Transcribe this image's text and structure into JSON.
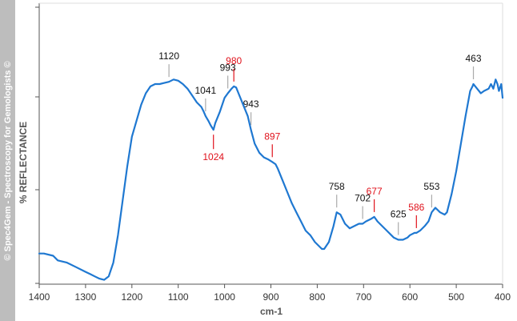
{
  "watermark": "© Spec4Gem - Spectroscopy for Gemologists ©",
  "chart_data": {
    "type": "line",
    "xlabel": "cm-1",
    "ylabel": "% REFLECTANCE",
    "xlim": [
      1400,
      400
    ],
    "x_reversed": true,
    "ylim": [
      0,
      100
    ],
    "grid": false,
    "x_ticks": [
      1400,
      1300,
      1200,
      1100,
      1000,
      900,
      800,
      700,
      600,
      500,
      400
    ],
    "line_color": "#1f78d1",
    "series": [
      {
        "values_note_units": "arbitrary reflectance (no y tick labels printed)",
        "x": [
          1400,
          1390,
          1370,
          1360,
          1340,
          1320,
          1300,
          1290,
          1280,
          1270,
          1260,
          1250,
          1240,
          1230,
          1220,
          1210,
          1200,
          1190,
          1180,
          1170,
          1160,
          1150,
          1140,
          1130,
          1120,
          1110,
          1100,
          1090,
          1080,
          1070,
          1060,
          1050,
          1045,
          1041,
          1035,
          1030,
          1024,
          1020,
          1010,
          1000,
          993,
          985,
          980,
          975,
          970,
          960,
          950,
          943,
          935,
          925,
          915,
          905,
          897,
          890,
          885,
          875,
          865,
          855,
          845,
          835,
          825,
          815,
          805,
          795,
          790,
          785,
          775,
          765,
          758,
          750,
          740,
          730,
          720,
          710,
          702,
          695,
          685,
          677,
          670,
          660,
          650,
          640,
          635,
          625,
          615,
          605,
          600,
          590,
          586,
          578,
          568,
          560,
          553,
          545,
          535,
          525,
          520,
          510,
          500,
          490,
          480,
          470,
          465,
          463,
          455,
          447,
          440,
          430,
          425,
          420,
          415,
          411,
          408,
          403,
          400
        ],
        "y": [
          12,
          12,
          11,
          9,
          8,
          6,
          4,
          3,
          2,
          1,
          0.5,
          2,
          8,
          20,
          35,
          50,
          63,
          70,
          77,
          82,
          85,
          86,
          86,
          86.5,
          87,
          88,
          87.5,
          86,
          84,
          81,
          78,
          76,
          74,
          72,
          70,
          68,
          66,
          69,
          74,
          80,
          82,
          84,
          85,
          84.5,
          82,
          77,
          72,
          66,
          60,
          56,
          54,
          53,
          52,
          51,
          49,
          44,
          39,
          34,
          30,
          26,
          22,
          20,
          17,
          15,
          14,
          14,
          17,
          24,
          30,
          29,
          25,
          23,
          24,
          25,
          25,
          26,
          27,
          28,
          26,
          24,
          22,
          20,
          19,
          18,
          18,
          19,
          20,
          21,
          21,
          22,
          24,
          26,
          30,
          32,
          30,
          29,
          30,
          38,
          48,
          60,
          72,
          83,
          85,
          86,
          84,
          82,
          83,
          84,
          86,
          84,
          88,
          86,
          83,
          86,
          80
        ]
      }
    ],
    "annotations": [
      {
        "label": "1120",
        "x": 1120,
        "color": "black"
      },
      {
        "label": "1041",
        "x": 1041,
        "color": "black"
      },
      {
        "label": "1024",
        "x": 1024,
        "color": "red"
      },
      {
        "label": "993",
        "x": 993,
        "color": "black"
      },
      {
        "label": "980",
        "x": 980,
        "color": "red"
      },
      {
        "label": "943",
        "x": 943,
        "color": "black"
      },
      {
        "label": "897",
        "x": 897,
        "color": "red"
      },
      {
        "label": "758",
        "x": 758,
        "color": "black"
      },
      {
        "label": "702",
        "x": 702,
        "color": "black"
      },
      {
        "label": "677",
        "x": 677,
        "color": "red"
      },
      {
        "label": "625",
        "x": 625,
        "color": "black"
      },
      {
        "label": "586",
        "x": 586,
        "color": "red"
      },
      {
        "label": "553",
        "x": 553,
        "color": "black"
      },
      {
        "label": "463",
        "x": 463,
        "color": "black"
      }
    ]
  }
}
